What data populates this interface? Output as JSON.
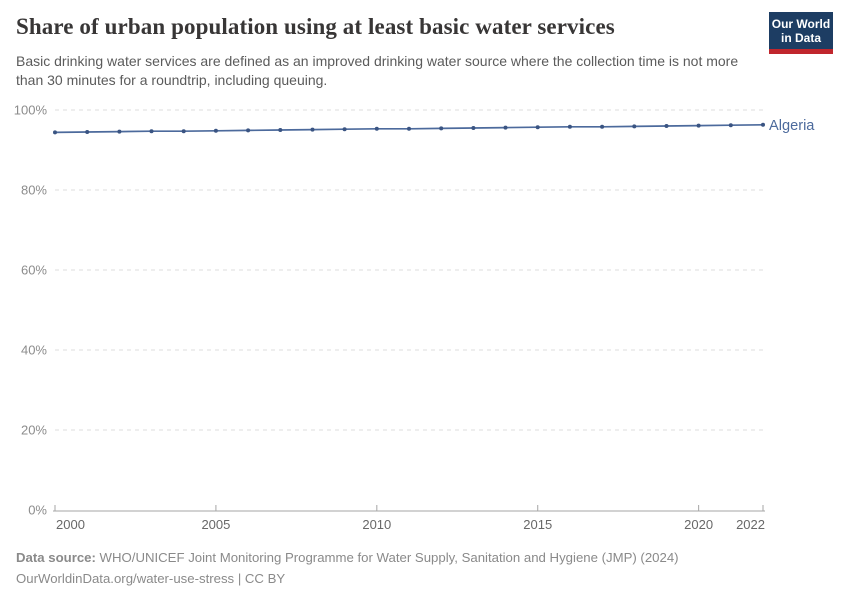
{
  "header": {
    "logo": {
      "line1": "Our World",
      "line2": "in Data"
    }
  },
  "chart_data": {
    "type": "line",
    "title": "Share of urban population using at least basic water services",
    "subtitle": "Basic drinking water services are defined as an improved drinking water source where the collection time is not more than 30 minutes for a roundtrip, including queuing.",
    "x": [
      2000,
      2001,
      2002,
      2003,
      2004,
      2005,
      2006,
      2007,
      2008,
      2009,
      2010,
      2011,
      2012,
      2013,
      2014,
      2015,
      2016,
      2017,
      2018,
      2019,
      2020,
      2021,
      2022
    ],
    "series": [
      {
        "name": "Algeria",
        "color": "#4c6a9c",
        "values": [
          94.4,
          94.5,
          94.6,
          94.7,
          94.7,
          94.8,
          94.9,
          95.0,
          95.1,
          95.2,
          95.3,
          95.3,
          95.4,
          95.5,
          95.6,
          95.7,
          95.8,
          95.8,
          95.9,
          96.0,
          96.1,
          96.2,
          96.3
        ]
      }
    ],
    "x_ticks": [
      2000,
      2005,
      2010,
      2015,
      2020,
      2022
    ],
    "y_ticks": [
      0,
      20,
      40,
      60,
      80,
      100
    ],
    "y_tick_suffix": "%",
    "xlim": [
      2000,
      2022
    ],
    "ylim": [
      0,
      100
    ],
    "grid": "horizontal-dashed",
    "legend_position": "end-of-line-label",
    "xlabel": "",
    "ylabel": ""
  },
  "footer": {
    "source_label": "Data source:",
    "source_text": " WHO/UNICEF Joint Monitoring Programme for Water Supply, Sanitation and Hygiene (JMP) (2024)",
    "link_line": "OurWorldinData.org/water-use-stress | CC BY"
  },
  "colors": {
    "accent_line": "#4c6a9c",
    "marker": "#3a5482",
    "grid": "#dddddd",
    "axis": "#a5a5a5",
    "y_tick_text": "#8c8c8c",
    "x_tick_text": "#686868",
    "logo_bg": "#1d3d63",
    "logo_stripe": "#c0262d"
  }
}
